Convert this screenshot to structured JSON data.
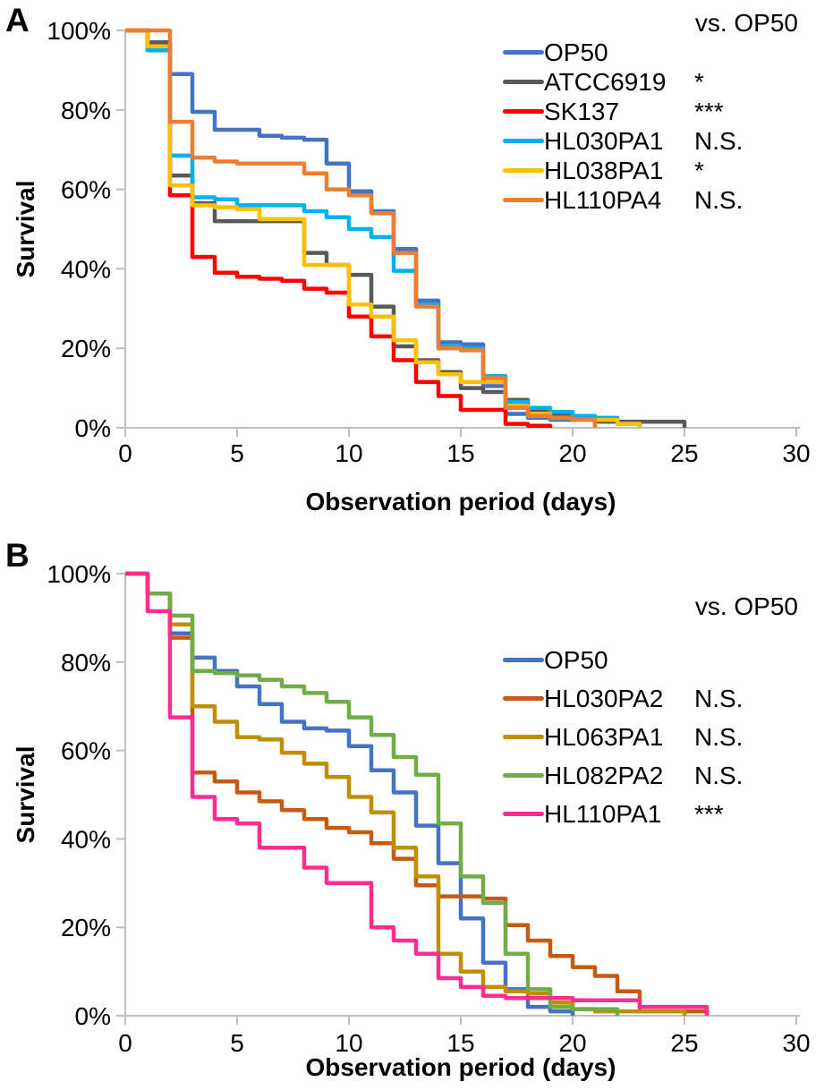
{
  "figure": {
    "background": "#ffffff",
    "axis_color": "#BFBFBF",
    "text_color": "#000000"
  },
  "chart_data": [
    {
      "type": "line",
      "subtype": "step-survival",
      "panel_label": "A",
      "legend_header": "vs. OP50",
      "xlabel": "Observation period (days)",
      "ylabel": "Survival",
      "xlim": [
        0,
        30
      ],
      "ylim": [
        0,
        100
      ],
      "x_tick_values": [
        "0",
        "5",
        "10",
        "15",
        "20",
        "25",
        "30"
      ],
      "y_tick_labels": [
        "0%",
        "20%",
        "40%",
        "60%",
        "80%",
        "100%"
      ],
      "legend_position": "top-right-inside",
      "grid": false,
      "series": [
        {
          "name": "OP50",
          "significance": "",
          "color": "#4472C4",
          "points": [
            [
              0,
              100
            ],
            [
              1,
              95.5
            ],
            [
              2,
              89
            ],
            [
              3,
              79.5
            ],
            [
              4,
              75
            ],
            [
              5,
              75
            ],
            [
              6,
              73.5
            ],
            [
              7,
              73
            ],
            [
              8,
              72.5
            ],
            [
              9,
              66.5
            ],
            [
              10,
              59.5
            ],
            [
              11,
              54.5
            ],
            [
              12,
              45
            ],
            [
              13,
              32
            ],
            [
              14,
              21.5
            ],
            [
              15,
              21
            ],
            [
              16,
              10.5
            ],
            [
              17,
              3.5
            ],
            [
              18,
              2.5
            ],
            [
              19,
              2
            ],
            [
              20,
              2
            ],
            [
              21,
              1.5
            ],
            [
              22,
              1.5
            ],
            [
              23,
              0
            ]
          ]
        },
        {
          "name": "ATCC6919",
          "significance": "*",
          "color": "#595959",
          "points": [
            [
              0,
              100
            ],
            [
              1,
              97
            ],
            [
              2,
              63.5
            ],
            [
              3,
              56.5
            ],
            [
              4,
              52
            ],
            [
              5,
              52
            ],
            [
              6,
              52
            ],
            [
              7,
              52
            ],
            [
              8,
              44
            ],
            [
              9,
              41
            ],
            [
              10,
              38.5
            ],
            [
              11,
              30.5
            ],
            [
              12,
              20.5
            ],
            [
              13,
              17
            ],
            [
              14,
              14
            ],
            [
              15,
              10
            ],
            [
              16,
              9
            ],
            [
              17,
              7
            ],
            [
              18,
              4.5
            ],
            [
              19,
              3
            ],
            [
              20,
              2.5
            ],
            [
              21,
              1.5
            ],
            [
              22,
              1.5
            ],
            [
              23,
              1.5
            ],
            [
              24,
              1.5
            ],
            [
              25,
              0
            ]
          ]
        },
        {
          "name": "SK137",
          "significance": "***",
          "color": "#FF0000",
          "points": [
            [
              0,
              100
            ],
            [
              1,
              96
            ],
            [
              2,
              58.5
            ],
            [
              3,
              43
            ],
            [
              4,
              39
            ],
            [
              5,
              38
            ],
            [
              6,
              37.5
            ],
            [
              7,
              37
            ],
            [
              8,
              35
            ],
            [
              9,
              34
            ],
            [
              10,
              28
            ],
            [
              11,
              23
            ],
            [
              12,
              17
            ],
            [
              13,
              11.5
            ],
            [
              14,
              8
            ],
            [
              15,
              4.5
            ],
            [
              16,
              4.5
            ],
            [
              17,
              1
            ],
            [
              18,
              0.5
            ],
            [
              19,
              0
            ]
          ]
        },
        {
          "name": "HL030PA1",
          "significance": "N.S.",
          "color": "#00B0F0",
          "points": [
            [
              0,
              100
            ],
            [
              1,
              95
            ],
            [
              2,
              68.5
            ],
            [
              3,
              58
            ],
            [
              4,
              57.5
            ],
            [
              5,
              56
            ],
            [
              6,
              56
            ],
            [
              7,
              56
            ],
            [
              8,
              54.5
            ],
            [
              9,
              53
            ],
            [
              10,
              50
            ],
            [
              11,
              48
            ],
            [
              12,
              39.5
            ],
            [
              13,
              31
            ],
            [
              14,
              20.5
            ],
            [
              15,
              20
            ],
            [
              16,
              13
            ],
            [
              17,
              6.5
            ],
            [
              18,
              5
            ],
            [
              19,
              4
            ],
            [
              20,
              3
            ],
            [
              21,
              2.5
            ],
            [
              22,
              1
            ],
            [
              23,
              0
            ]
          ]
        },
        {
          "name": "HL038PA1",
          "significance": "*",
          "color": "#FFC000",
          "points": [
            [
              0,
              100
            ],
            [
              1,
              96
            ],
            [
              2,
              61
            ],
            [
              3,
              56
            ],
            [
              4,
              55.5
            ],
            [
              5,
              55
            ],
            [
              6,
              52.5
            ],
            [
              7,
              52.5
            ],
            [
              8,
              41
            ],
            [
              9,
              41
            ],
            [
              10,
              31
            ],
            [
              11,
              28
            ],
            [
              12,
              22
            ],
            [
              13,
              16.5
            ],
            [
              14,
              13.5
            ],
            [
              15,
              11.5
            ],
            [
              16,
              11.5
            ],
            [
              17,
              5.5
            ],
            [
              18,
              3.5
            ],
            [
              19,
              2.5
            ],
            [
              20,
              2
            ],
            [
              21,
              2
            ],
            [
              22,
              1
            ],
            [
              23,
              0
            ]
          ]
        },
        {
          "name": "HL110PA4",
          "significance": "N.S.",
          "color": "#ED7D31",
          "points": [
            [
              0,
              100
            ],
            [
              1,
              100
            ],
            [
              2,
              77
            ],
            [
              3,
              68
            ],
            [
              4,
              67
            ],
            [
              5,
              66.5
            ],
            [
              6,
              66.5
            ],
            [
              7,
              66.5
            ],
            [
              8,
              64
            ],
            [
              9,
              60
            ],
            [
              10,
              58.5
            ],
            [
              11,
              54
            ],
            [
              12,
              44
            ],
            [
              13,
              30.5
            ],
            [
              14,
              20
            ],
            [
              15,
              19.5
            ],
            [
              16,
              12.5
            ],
            [
              17,
              5
            ],
            [
              18,
              3
            ],
            [
              19,
              2.5
            ],
            [
              20,
              2
            ],
            [
              21,
              0
            ]
          ]
        }
      ]
    },
    {
      "type": "line",
      "subtype": "step-survival",
      "panel_label": "B",
      "legend_header": "vs. OP50",
      "xlabel": "Observation period (days)",
      "ylabel": "Survival",
      "xlim": [
        0,
        30
      ],
      "ylim": [
        0,
        100
      ],
      "x_tick_values": [
        "0",
        "5",
        "10",
        "15",
        "20",
        "25",
        "30"
      ],
      "y_tick_labels": [
        "0%",
        "20%",
        "40%",
        "60%",
        "80%",
        "100%"
      ],
      "legend_position": "top-right-inside",
      "grid": false,
      "series": [
        {
          "name": "OP50",
          "significance": "",
          "color": "#4472C4",
          "points": [
            [
              0,
              100
            ],
            [
              1,
              95.5
            ],
            [
              2,
              86.5
            ],
            [
              3,
              81
            ],
            [
              4,
              78
            ],
            [
              5,
              74.5
            ],
            [
              6,
              70.5
            ],
            [
              7,
              66.5
            ],
            [
              8,
              65
            ],
            [
              9,
              64.5
            ],
            [
              10,
              61
            ],
            [
              11,
              55.5
            ],
            [
              12,
              50.5
            ],
            [
              13,
              43
            ],
            [
              14,
              34.5
            ],
            [
              15,
              22
            ],
            [
              16,
              12
            ],
            [
              17,
              6
            ],
            [
              18,
              2
            ],
            [
              19,
              1
            ],
            [
              20,
              0
            ]
          ]
        },
        {
          "name": "HL030PA2",
          "significance": "N.S.",
          "color": "#C55A11",
          "points": [
            [
              0,
              100
            ],
            [
              1,
              95.5
            ],
            [
              2,
              85.5
            ],
            [
              3,
              55
            ],
            [
              4,
              53
            ],
            [
              5,
              50.5
            ],
            [
              6,
              48.5
            ],
            [
              7,
              46.5
            ],
            [
              8,
              44.5
            ],
            [
              9,
              42.5
            ],
            [
              10,
              41.5
            ],
            [
              11,
              39
            ],
            [
              12,
              35.5
            ],
            [
              13,
              29.5
            ],
            [
              14,
              27
            ],
            [
              15,
              27
            ],
            [
              16,
              26.5
            ],
            [
              17,
              20.5
            ],
            [
              18,
              17
            ],
            [
              19,
              13.5
            ],
            [
              20,
              11
            ],
            [
              21,
              9
            ],
            [
              22,
              5.5
            ],
            [
              23,
              1
            ],
            [
              24,
              1
            ],
            [
              25,
              1
            ],
            [
              26,
              0
            ]
          ]
        },
        {
          "name": "HL063PA1",
          "significance": "N.S.",
          "color": "#BF8F00",
          "points": [
            [
              0,
              100
            ],
            [
              1,
              95.5
            ],
            [
              2,
              88.5
            ],
            [
              3,
              70
            ],
            [
              4,
              66.5
            ],
            [
              5,
              63
            ],
            [
              6,
              62.5
            ],
            [
              7,
              59.5
            ],
            [
              8,
              57
            ],
            [
              9,
              54
            ],
            [
              10,
              49.5
            ],
            [
              11,
              46
            ],
            [
              12,
              38
            ],
            [
              13,
              31.5
            ],
            [
              14,
              14
            ],
            [
              15,
              10
            ],
            [
              16,
              6.5
            ],
            [
              17,
              5.5
            ],
            [
              18,
              5
            ],
            [
              19,
              3
            ],
            [
              20,
              1.5
            ],
            [
              21,
              1
            ],
            [
              22,
              1
            ],
            [
              23,
              1
            ],
            [
              24,
              1
            ],
            [
              25,
              0
            ]
          ]
        },
        {
          "name": "HL082PA2",
          "significance": "N.S.",
          "color": "#70AD47",
          "points": [
            [
              0,
              100
            ],
            [
              1,
              95.5
            ],
            [
              2,
              90.5
            ],
            [
              3,
              78
            ],
            [
              4,
              77.5
            ],
            [
              5,
              77
            ],
            [
              6,
              76
            ],
            [
              7,
              74.5
            ],
            [
              8,
              73
            ],
            [
              9,
              71
            ],
            [
              10,
              67.5
            ],
            [
              11,
              63.5
            ],
            [
              12,
              58.5
            ],
            [
              13,
              54.5
            ],
            [
              14,
              43.5
            ],
            [
              15,
              31.5
            ],
            [
              16,
              25.5
            ],
            [
              17,
              14
            ],
            [
              18,
              6
            ],
            [
              19,
              2
            ],
            [
              20,
              1.5
            ],
            [
              21,
              1.5
            ],
            [
              22,
              0
            ]
          ]
        },
        {
          "name": "HL110PA1",
          "significance": "***",
          "color": "#FF2D92",
          "points": [
            [
              0,
              100
            ],
            [
              1,
              91.5
            ],
            [
              2,
              67.5
            ],
            [
              3,
              49.5
            ],
            [
              4,
              44.5
            ],
            [
              5,
              43.5
            ],
            [
              6,
              38
            ],
            [
              7,
              38
            ],
            [
              8,
              33.5
            ],
            [
              9,
              30
            ],
            [
              10,
              30
            ],
            [
              11,
              20
            ],
            [
              12,
              17
            ],
            [
              13,
              14
            ],
            [
              14,
              8.5
            ],
            [
              15,
              6.5
            ],
            [
              16,
              4.5
            ],
            [
              17,
              4
            ],
            [
              18,
              4
            ],
            [
              19,
              4
            ],
            [
              20,
              3.5
            ],
            [
              21,
              3.5
            ],
            [
              22,
              3.5
            ],
            [
              23,
              2
            ],
            [
              24,
              2
            ],
            [
              25,
              2
            ],
            [
              26,
              0
            ]
          ]
        }
      ]
    }
  ]
}
